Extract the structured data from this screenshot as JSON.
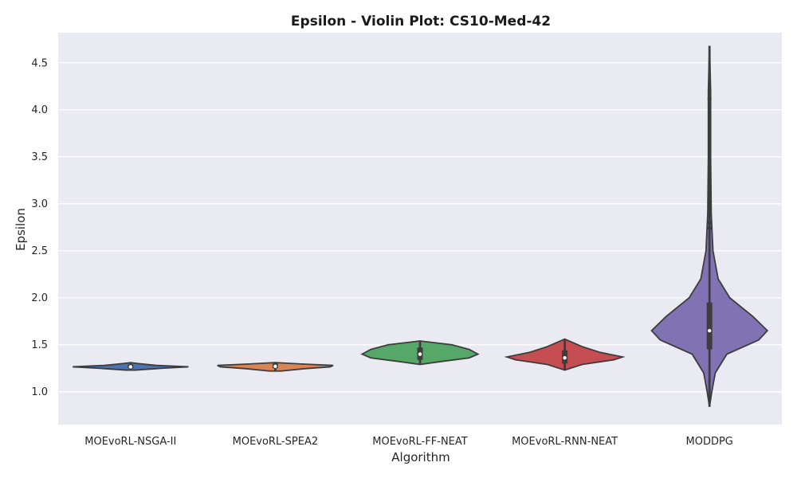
{
  "chart_data": {
    "type": "violin",
    "title": "Epsilon - Violin Plot: CS10-Med-42",
    "xlabel": "Algorithm",
    "ylabel": "Epsilon",
    "ylim": [
      0.65,
      4.82
    ],
    "yticks": [
      1.0,
      1.5,
      2.0,
      2.5,
      3.0,
      3.5,
      4.0,
      4.5
    ],
    "ytick_labels": [
      "1.0",
      "1.5",
      "2.0",
      "2.5",
      "3.0",
      "3.5",
      "4.0",
      "4.5"
    ],
    "grid": true,
    "categories": [
      "MOEvoRL-NSGA-II",
      "MOEvoRL-SPEA2",
      "MOEvoRL-FF-NEAT",
      "MOEvoRL-RNN-NEAT",
      "MODDPG"
    ],
    "series": [
      {
        "category": "MOEvoRL-NSGA-II",
        "color": "#4c72b0",
        "min": 1.23,
        "q1": 1.25,
        "median": 1.265,
        "q3": 1.29,
        "max": 1.31,
        "density": [
          [
            1.23,
            0.08
          ],
          [
            1.25,
            0.55
          ],
          [
            1.265,
            1.0
          ],
          [
            1.28,
            0.45
          ],
          [
            1.3,
            0.12
          ],
          [
            1.31,
            0.0
          ]
        ]
      },
      {
        "category": "MOEvoRL-SPEA2",
        "color": "#dd8452",
        "min": 1.22,
        "q1": 1.25,
        "median": 1.27,
        "q3": 1.3,
        "max": 1.31,
        "density": [
          [
            1.22,
            0.1
          ],
          [
            1.245,
            0.5
          ],
          [
            1.265,
            0.95
          ],
          [
            1.28,
            1.0
          ],
          [
            1.295,
            0.45
          ],
          [
            1.31,
            0.0
          ]
        ]
      },
      {
        "category": "MOEvoRL-FF-NEAT",
        "color": "#55a868",
        "min": 1.29,
        "q1": 1.34,
        "median": 1.4,
        "q3": 1.47,
        "max": 1.54,
        "density": [
          [
            1.29,
            0.0
          ],
          [
            1.32,
            0.35
          ],
          [
            1.36,
            0.85
          ],
          [
            1.4,
            1.0
          ],
          [
            1.45,
            0.85
          ],
          [
            1.5,
            0.55
          ],
          [
            1.54,
            0.0
          ]
        ]
      },
      {
        "category": "MOEvoRL-RNN-NEAT",
        "color": "#c44e52",
        "min": 1.23,
        "q1": 1.3,
        "median": 1.36,
        "q3": 1.44,
        "max": 1.56,
        "density": [
          [
            1.23,
            0.0
          ],
          [
            1.29,
            0.3
          ],
          [
            1.34,
            0.85
          ],
          [
            1.37,
            1.0
          ],
          [
            1.42,
            0.6
          ],
          [
            1.48,
            0.3
          ],
          [
            1.56,
            0.0
          ]
        ]
      },
      {
        "category": "MODDPG",
        "color": "#8172b3",
        "min": 0.84,
        "q1": 1.45,
        "median": 1.65,
        "q3": 1.95,
        "max": 4.68,
        "outliers": [
          2.74,
          2.8,
          4.12
        ],
        "density": [
          [
            0.84,
            0.0
          ],
          [
            1.0,
            0.04
          ],
          [
            1.2,
            0.1
          ],
          [
            1.4,
            0.3
          ],
          [
            1.55,
            0.85
          ],
          [
            1.65,
            1.0
          ],
          [
            1.8,
            0.75
          ],
          [
            2.0,
            0.35
          ],
          [
            2.2,
            0.15
          ],
          [
            2.5,
            0.06
          ],
          [
            2.9,
            0.03
          ],
          [
            3.5,
            0.02
          ],
          [
            4.2,
            0.02
          ],
          [
            4.68,
            0.0
          ]
        ]
      }
    ]
  }
}
